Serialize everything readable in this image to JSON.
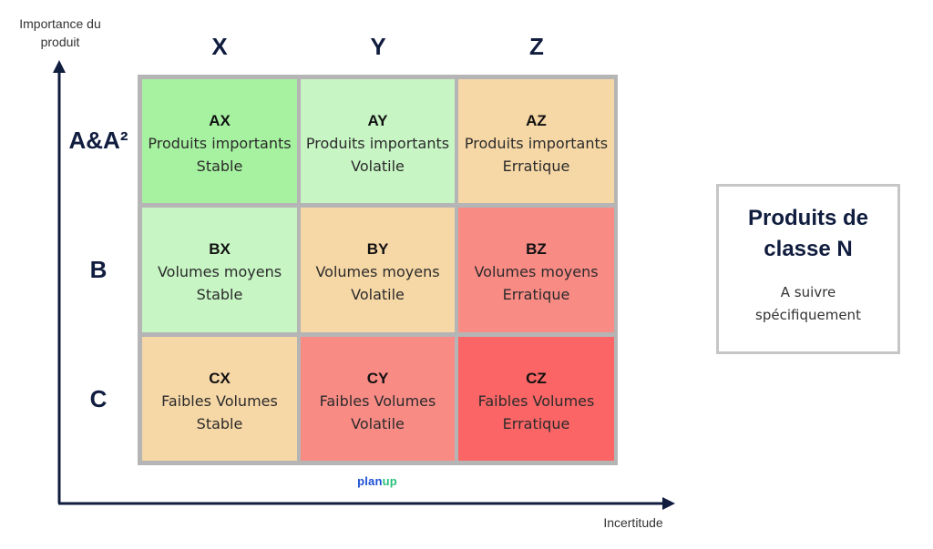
{
  "axes": {
    "y_title": "Importance du produit",
    "x_title": "Incertitude"
  },
  "columns": [
    "X",
    "Y",
    "Z"
  ],
  "rows": [
    "A&A²",
    "B",
    "C"
  ],
  "cells": [
    {
      "code": "AX",
      "line1": "Produits importants",
      "line2": "Stable",
      "color": "#a6f2a0"
    },
    {
      "code": "AY",
      "line1": "Produits importants",
      "line2": "Volatile",
      "color": "#c7f5c4"
    },
    {
      "code": "AZ",
      "line1": "Produits importants",
      "line2": "Erratique",
      "color": "#f6d7a6"
    },
    {
      "code": "BX",
      "line1": "Volumes moyens",
      "line2": "Stable",
      "color": "#c7f5c4"
    },
    {
      "code": "BY",
      "line1": "Volumes moyens",
      "line2": "Volatile",
      "color": "#f6d7a6"
    },
    {
      "code": "BZ",
      "line1": "Volumes moyens",
      "line2": "Erratique",
      "color": "#f98b85"
    },
    {
      "code": "CX",
      "line1": "Faibles Volumes",
      "line2": "Stable",
      "color": "#f6d7a6"
    },
    {
      "code": "CY",
      "line1": "Faibles Volumes",
      "line2": "Volatile",
      "color": "#f98b85"
    },
    {
      "code": "CZ",
      "line1": "Faibles Volumes",
      "line2": "Erratique",
      "color": "#fb6566"
    }
  ],
  "logo": {
    "part1": "plan",
    "part2": "up"
  },
  "note": {
    "title": "Produits de classe N",
    "subtitle_line1": "A suivre",
    "subtitle_line2": "spécifiquement"
  },
  "colors": {
    "axis": "#111d3f",
    "grid_border": "#b5b5b5",
    "note_border": "#c6c6c6"
  }
}
